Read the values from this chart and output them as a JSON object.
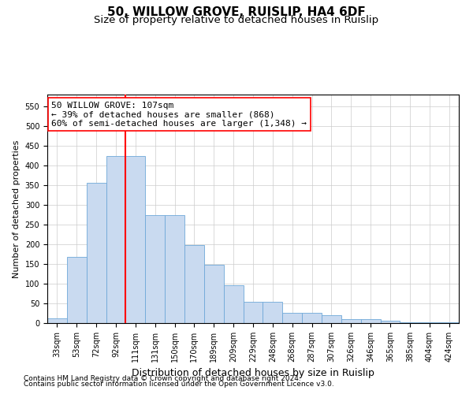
{
  "title": "50, WILLOW GROVE, RUISLIP, HA4 6DF",
  "subtitle": "Size of property relative to detached houses in Ruislip",
  "xlabel": "Distribution of detached houses by size in Ruislip",
  "ylabel": "Number of detached properties",
  "categories": [
    "33sqm",
    "53sqm",
    "72sqm",
    "92sqm",
    "111sqm",
    "131sqm",
    "150sqm",
    "170sqm",
    "189sqm",
    "209sqm",
    "229sqm",
    "248sqm",
    "268sqm",
    "287sqm",
    "307sqm",
    "326sqm",
    "346sqm",
    "365sqm",
    "385sqm",
    "404sqm",
    "424sqm"
  ],
  "values": [
    13,
    168,
    357,
    425,
    425,
    275,
    275,
    199,
    148,
    96,
    55,
    55,
    26,
    26,
    20,
    11,
    11,
    6,
    3,
    3,
    3
  ],
  "bar_color": "#c9daf0",
  "bar_edge_color": "#6fa8d8",
  "vline_x_index": 3,
  "vline_color": "red",
  "annotation_line1": "50 WILLOW GROVE: 107sqm",
  "annotation_line2": "← 39% of detached houses are smaller (868)",
  "annotation_line3": "60% of semi-detached houses are larger (1,348) →",
  "annotation_box_color": "white",
  "annotation_box_edge": "red",
  "ylim": [
    0,
    580
  ],
  "yticks": [
    0,
    50,
    100,
    150,
    200,
    250,
    300,
    350,
    400,
    450,
    500,
    550
  ],
  "grid_color": "#cccccc",
  "background_color": "white",
  "footer1": "Contains HM Land Registry data © Crown copyright and database right 2024.",
  "footer2": "Contains public sector information licensed under the Open Government Licence v3.0.",
  "title_fontsize": 11,
  "subtitle_fontsize": 9.5,
  "xlabel_fontsize": 9,
  "ylabel_fontsize": 8,
  "tick_fontsize": 7,
  "annotation_fontsize": 8,
  "footer_fontsize": 6.5
}
